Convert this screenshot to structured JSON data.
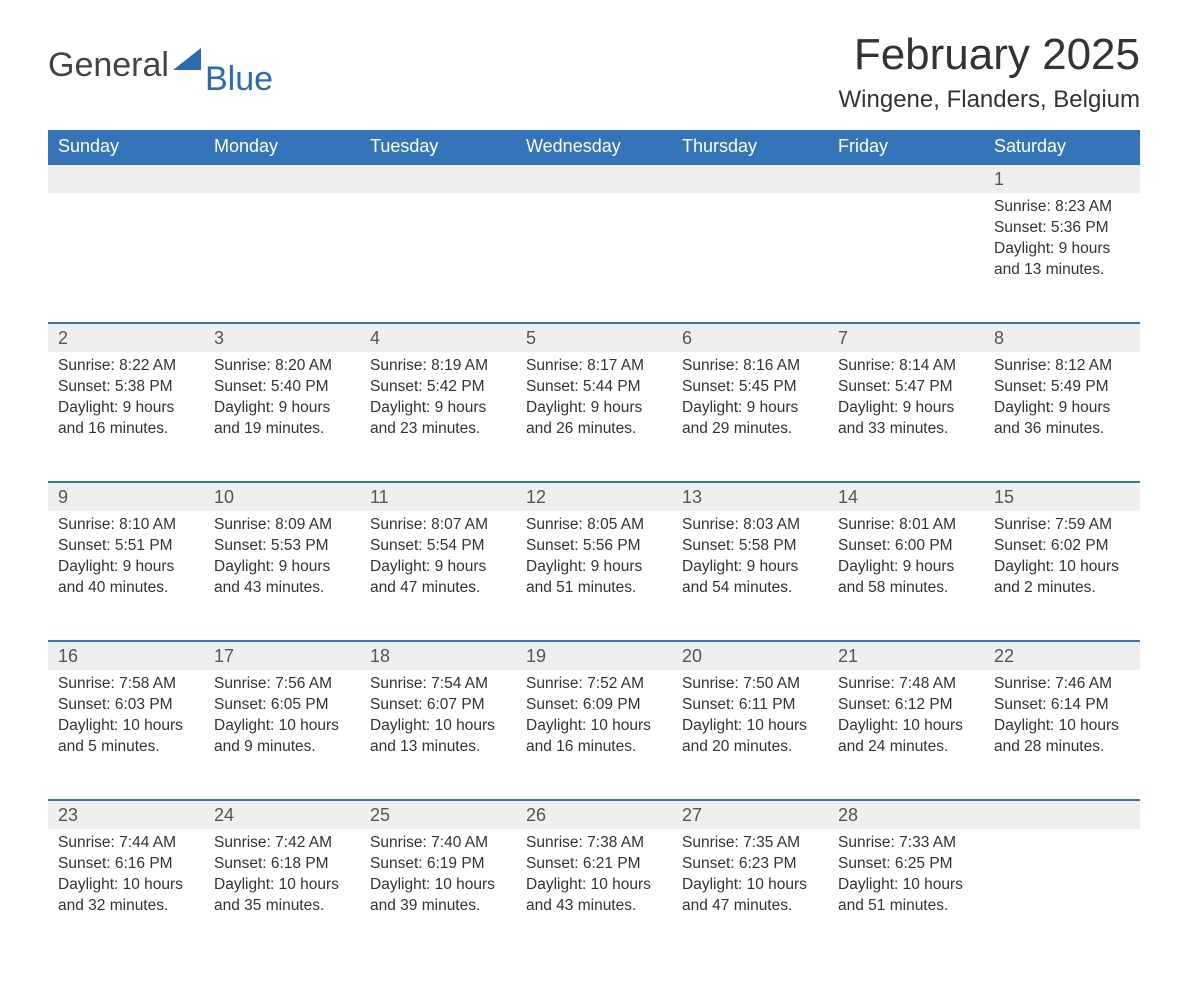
{
  "logo": {
    "part1": "General",
    "part2": "Blue"
  },
  "title": "February 2025",
  "location": "Wingene, Flanders, Belgium",
  "colors": {
    "header_bg": "#3474b9",
    "header_text": "#ffffff",
    "numrow_bg": "#efefef",
    "border_top": "#3474b9",
    "body_text": "#333333",
    "logo_gray": "#444444",
    "logo_blue": "#2b6cb0"
  },
  "weekdays": [
    "Sunday",
    "Monday",
    "Tuesday",
    "Wednesday",
    "Thursday",
    "Friday",
    "Saturday"
  ],
  "weeks": [
    [
      null,
      null,
      null,
      null,
      null,
      null,
      {
        "n": "1",
        "sunrise": "Sunrise: 8:23 AM",
        "sunset": "Sunset: 5:36 PM",
        "day1": "Daylight: 9 hours",
        "day2": "and 13 minutes."
      }
    ],
    [
      {
        "n": "2",
        "sunrise": "Sunrise: 8:22 AM",
        "sunset": "Sunset: 5:38 PM",
        "day1": "Daylight: 9 hours",
        "day2": "and 16 minutes."
      },
      {
        "n": "3",
        "sunrise": "Sunrise: 8:20 AM",
        "sunset": "Sunset: 5:40 PM",
        "day1": "Daylight: 9 hours",
        "day2": "and 19 minutes."
      },
      {
        "n": "4",
        "sunrise": "Sunrise: 8:19 AM",
        "sunset": "Sunset: 5:42 PM",
        "day1": "Daylight: 9 hours",
        "day2": "and 23 minutes."
      },
      {
        "n": "5",
        "sunrise": "Sunrise: 8:17 AM",
        "sunset": "Sunset: 5:44 PM",
        "day1": "Daylight: 9 hours",
        "day2": "and 26 minutes."
      },
      {
        "n": "6",
        "sunrise": "Sunrise: 8:16 AM",
        "sunset": "Sunset: 5:45 PM",
        "day1": "Daylight: 9 hours",
        "day2": "and 29 minutes."
      },
      {
        "n": "7",
        "sunrise": "Sunrise: 8:14 AM",
        "sunset": "Sunset: 5:47 PM",
        "day1": "Daylight: 9 hours",
        "day2": "and 33 minutes."
      },
      {
        "n": "8",
        "sunrise": "Sunrise: 8:12 AM",
        "sunset": "Sunset: 5:49 PM",
        "day1": "Daylight: 9 hours",
        "day2": "and 36 minutes."
      }
    ],
    [
      {
        "n": "9",
        "sunrise": "Sunrise: 8:10 AM",
        "sunset": "Sunset: 5:51 PM",
        "day1": "Daylight: 9 hours",
        "day2": "and 40 minutes."
      },
      {
        "n": "10",
        "sunrise": "Sunrise: 8:09 AM",
        "sunset": "Sunset: 5:53 PM",
        "day1": "Daylight: 9 hours",
        "day2": "and 43 minutes."
      },
      {
        "n": "11",
        "sunrise": "Sunrise: 8:07 AM",
        "sunset": "Sunset: 5:54 PM",
        "day1": "Daylight: 9 hours",
        "day2": "and 47 minutes."
      },
      {
        "n": "12",
        "sunrise": "Sunrise: 8:05 AM",
        "sunset": "Sunset: 5:56 PM",
        "day1": "Daylight: 9 hours",
        "day2": "and 51 minutes."
      },
      {
        "n": "13",
        "sunrise": "Sunrise: 8:03 AM",
        "sunset": "Sunset: 5:58 PM",
        "day1": "Daylight: 9 hours",
        "day2": "and 54 minutes."
      },
      {
        "n": "14",
        "sunrise": "Sunrise: 8:01 AM",
        "sunset": "Sunset: 6:00 PM",
        "day1": "Daylight: 9 hours",
        "day2": "and 58 minutes."
      },
      {
        "n": "15",
        "sunrise": "Sunrise: 7:59 AM",
        "sunset": "Sunset: 6:02 PM",
        "day1": "Daylight: 10 hours",
        "day2": "and 2 minutes."
      }
    ],
    [
      {
        "n": "16",
        "sunrise": "Sunrise: 7:58 AM",
        "sunset": "Sunset: 6:03 PM",
        "day1": "Daylight: 10 hours",
        "day2": "and 5 minutes."
      },
      {
        "n": "17",
        "sunrise": "Sunrise: 7:56 AM",
        "sunset": "Sunset: 6:05 PM",
        "day1": "Daylight: 10 hours",
        "day2": "and 9 minutes."
      },
      {
        "n": "18",
        "sunrise": "Sunrise: 7:54 AM",
        "sunset": "Sunset: 6:07 PM",
        "day1": "Daylight: 10 hours",
        "day2": "and 13 minutes."
      },
      {
        "n": "19",
        "sunrise": "Sunrise: 7:52 AM",
        "sunset": "Sunset: 6:09 PM",
        "day1": "Daylight: 10 hours",
        "day2": "and 16 minutes."
      },
      {
        "n": "20",
        "sunrise": "Sunrise: 7:50 AM",
        "sunset": "Sunset: 6:11 PM",
        "day1": "Daylight: 10 hours",
        "day2": "and 20 minutes."
      },
      {
        "n": "21",
        "sunrise": "Sunrise: 7:48 AM",
        "sunset": "Sunset: 6:12 PM",
        "day1": "Daylight: 10 hours",
        "day2": "and 24 minutes."
      },
      {
        "n": "22",
        "sunrise": "Sunrise: 7:46 AM",
        "sunset": "Sunset: 6:14 PM",
        "day1": "Daylight: 10 hours",
        "day2": "and 28 minutes."
      }
    ],
    [
      {
        "n": "23",
        "sunrise": "Sunrise: 7:44 AM",
        "sunset": "Sunset: 6:16 PM",
        "day1": "Daylight: 10 hours",
        "day2": "and 32 minutes."
      },
      {
        "n": "24",
        "sunrise": "Sunrise: 7:42 AM",
        "sunset": "Sunset: 6:18 PM",
        "day1": "Daylight: 10 hours",
        "day2": "and 35 minutes."
      },
      {
        "n": "25",
        "sunrise": "Sunrise: 7:40 AM",
        "sunset": "Sunset: 6:19 PM",
        "day1": "Daylight: 10 hours",
        "day2": "and 39 minutes."
      },
      {
        "n": "26",
        "sunrise": "Sunrise: 7:38 AM",
        "sunset": "Sunset: 6:21 PM",
        "day1": "Daylight: 10 hours",
        "day2": "and 43 minutes."
      },
      {
        "n": "27",
        "sunrise": "Sunrise: 7:35 AM",
        "sunset": "Sunset: 6:23 PM",
        "day1": "Daylight: 10 hours",
        "day2": "and 47 minutes."
      },
      {
        "n": "28",
        "sunrise": "Sunrise: 7:33 AM",
        "sunset": "Sunset: 6:25 PM",
        "day1": "Daylight: 10 hours",
        "day2": "and 51 minutes."
      },
      null
    ]
  ]
}
